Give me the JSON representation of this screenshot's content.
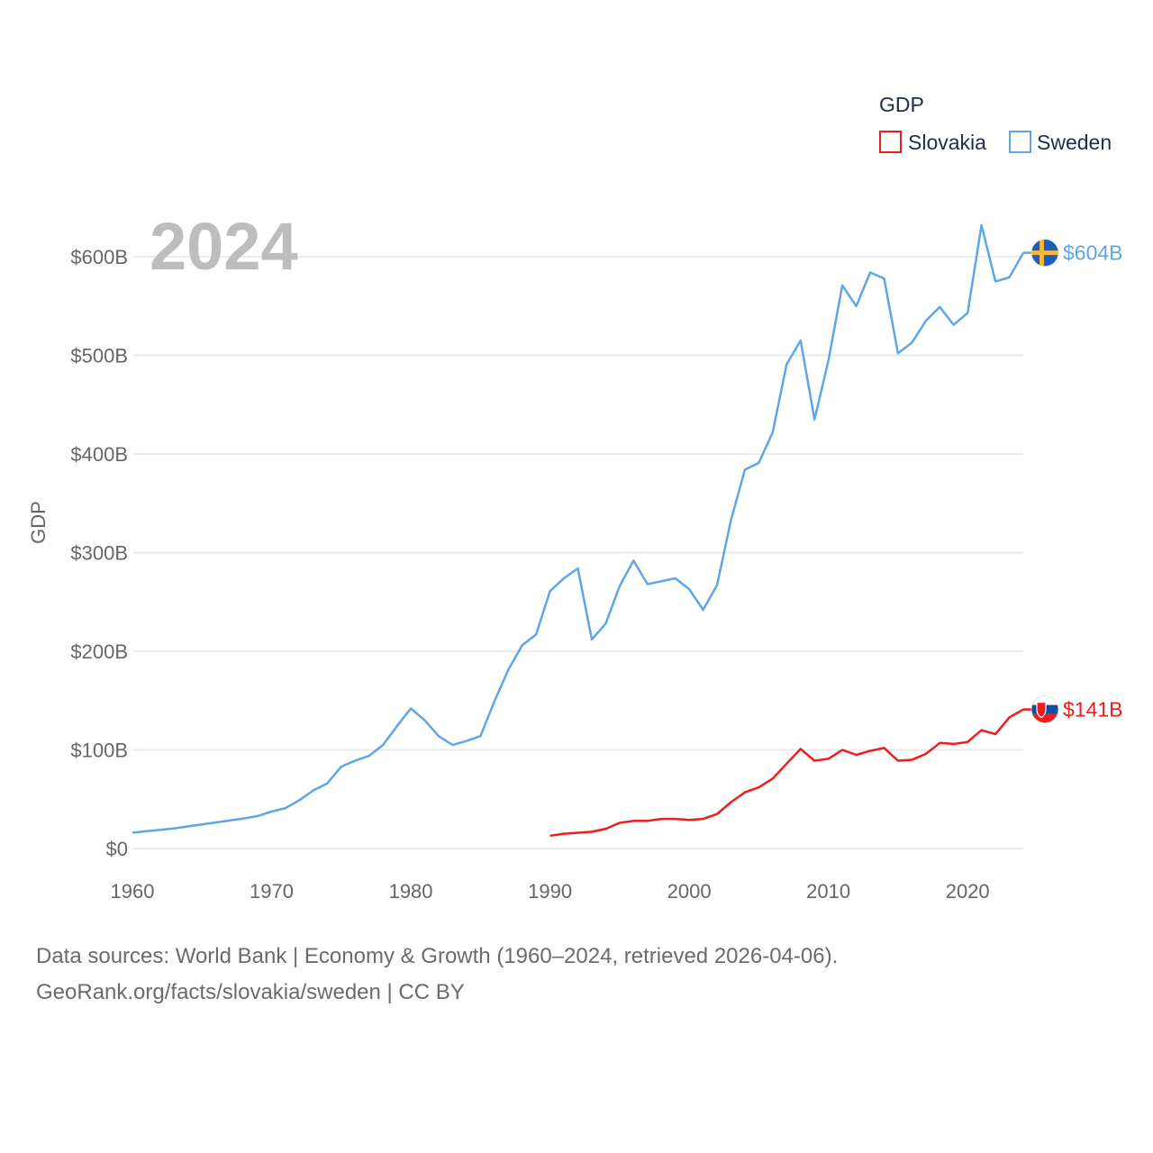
{
  "chart_data": {
    "type": "line",
    "year_label": "2024",
    "ylabel": "GDP",
    "legend": {
      "title": "GDP"
    },
    "x_ticks": [
      1960,
      1970,
      1980,
      1990,
      2000,
      2010,
      2020
    ],
    "x_tick_labels": [
      "1960",
      "1970",
      "1980",
      "1990",
      "2000",
      "2010",
      "2020"
    ],
    "xlim": [
      1960,
      2024
    ],
    "y_ticks": [
      0,
      100,
      200,
      300,
      400,
      500,
      600
    ],
    "y_tick_labels": [
      "$0",
      "$100B",
      "$200B",
      "$300B",
      "$400B",
      "$500B",
      "$600B"
    ],
    "ylim": [
      0,
      600
    ],
    "units": "billions of USD",
    "series": [
      {
        "name": "Slovakia",
        "color": "#ee1c1c",
        "end_label": "$141B",
        "flag_colors": [
          "#ffffff",
          "#0b4ea2",
          "#ee1c1c"
        ],
        "x": [
          1990,
          1991,
          1992,
          1993,
          1994,
          1995,
          1996,
          1997,
          1998,
          1999,
          2000,
          2001,
          2002,
          2003,
          2004,
          2005,
          2006,
          2007,
          2008,
          2009,
          2010,
          2011,
          2012,
          2013,
          2014,
          2015,
          2016,
          2017,
          2018,
          2019,
          2020,
          2021,
          2022,
          2023,
          2024
        ],
        "values": [
          13,
          15,
          16,
          17,
          20,
          26,
          28,
          28,
          30,
          30,
          29,
          30,
          35,
          47,
          57,
          62,
          71,
          86,
          101,
          89,
          91,
          100,
          95,
          99,
          102,
          89,
          90,
          96,
          107,
          106,
          108,
          120,
          116,
          133,
          141
        ]
      },
      {
        "name": "Sweden",
        "color": "#5ea6e6",
        "end_label": "$604B",
        "flag_colors": [
          "#1c5dbc",
          "#f4b73a"
        ],
        "x": [
          1960,
          1961,
          1962,
          1963,
          1964,
          1965,
          1966,
          1967,
          1968,
          1969,
          1970,
          1971,
          1972,
          1973,
          1974,
          1975,
          1976,
          1977,
          1978,
          1979,
          1980,
          1981,
          1982,
          1983,
          1984,
          1985,
          1986,
          1987,
          1988,
          1989,
          1990,
          1991,
          1992,
          1993,
          1994,
          1995,
          1996,
          1997,
          1998,
          1999,
          2000,
          2001,
          2002,
          2003,
          2004,
          2005,
          2006,
          2007,
          2008,
          2009,
          2010,
          2011,
          2012,
          2013,
          2014,
          2015,
          2016,
          2017,
          2018,
          2019,
          2020,
          2021,
          2022,
          2023,
          2024
        ],
        "values": [
          16,
          17.5,
          19,
          20.5,
          22.5,
          24.5,
          26.5,
          28.5,
          30.5,
          33,
          37.5,
          41,
          49,
          59,
          66,
          83,
          89,
          94,
          105,
          124,
          142,
          130,
          114,
          105,
          109,
          114,
          149,
          181,
          206,
          217,
          261,
          274,
          284,
          212,
          228,
          266,
          292,
          268,
          271,
          274,
          263,
          242,
          267,
          333,
          384,
          391,
          422,
          491,
          515,
          435,
          495,
          571,
          550,
          584,
          578,
          502,
          513,
          535,
          549,
          531,
          543,
          632,
          575,
          579,
          604
        ]
      }
    ]
  },
  "footer": {
    "line1": "Data sources: World Bank | Economy & Growth (1960–2024, retrieved 2026-04-06).",
    "line2": "GeoRank.org/facts/slovakia/sweden | CC BY"
  }
}
